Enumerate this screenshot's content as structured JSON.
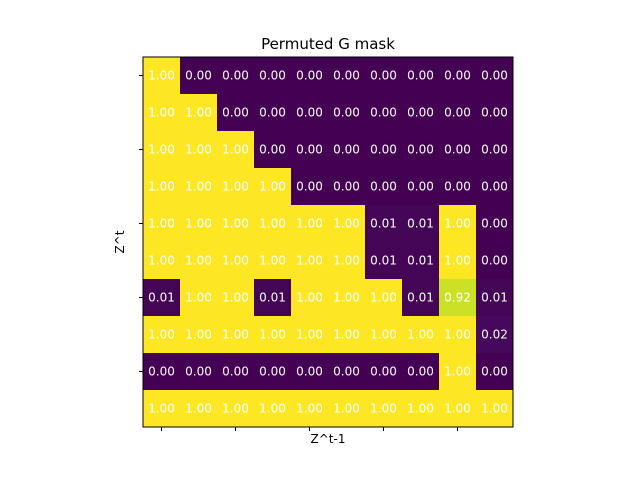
{
  "chart_data": {
    "type": "heatmap",
    "title": "Permuted G mask",
    "xlabel": "Z^t-1",
    "ylabel": "Z^t",
    "colormap": "viridis",
    "vmin": 0.0,
    "vmax": 1.0,
    "colors": {
      "low": "#440154",
      "high": "#fde725",
      "cell_text": "#ffffff"
    },
    "rows": 10,
    "cols": 10,
    "x_tick_labels": [
      "",
      "",
      "",
      "",
      ""
    ],
    "y_tick_labels": [
      "",
      "",
      "",
      "",
      ""
    ],
    "values": [
      [
        1.0,
        0.0,
        0.0,
        0.0,
        0.0,
        0.0,
        0.0,
        0.0,
        0.0,
        0.0
      ],
      [
        1.0,
        1.0,
        0.0,
        0.0,
        0.0,
        0.0,
        0.0,
        0.0,
        0.0,
        0.0
      ],
      [
        1.0,
        1.0,
        1.0,
        0.0,
        0.0,
        0.0,
        0.0,
        0.0,
        0.0,
        0.0
      ],
      [
        1.0,
        1.0,
        1.0,
        1.0,
        0.0,
        0.0,
        0.0,
        0.0,
        0.0,
        0.0
      ],
      [
        1.0,
        1.0,
        1.0,
        1.0,
        1.0,
        1.0,
        0.01,
        0.01,
        1.0,
        0.0
      ],
      [
        1.0,
        1.0,
        1.0,
        1.0,
        1.0,
        1.0,
        0.01,
        0.01,
        1.0,
        0.0
      ],
      [
        0.01,
        1.0,
        1.0,
        0.01,
        1.0,
        1.0,
        1.0,
        0.01,
        0.92,
        0.01
      ],
      [
        1.0,
        1.0,
        1.0,
        1.0,
        1.0,
        1.0,
        1.0,
        1.0,
        1.0,
        0.02
      ],
      [
        0.0,
        0.0,
        0.0,
        0.0,
        0.0,
        0.0,
        0.0,
        0.0,
        1.0,
        0.0
      ],
      [
        1.0,
        1.0,
        1.0,
        1.0,
        1.0,
        1.0,
        1.0,
        1.0,
        1.0,
        1.0
      ]
    ]
  }
}
